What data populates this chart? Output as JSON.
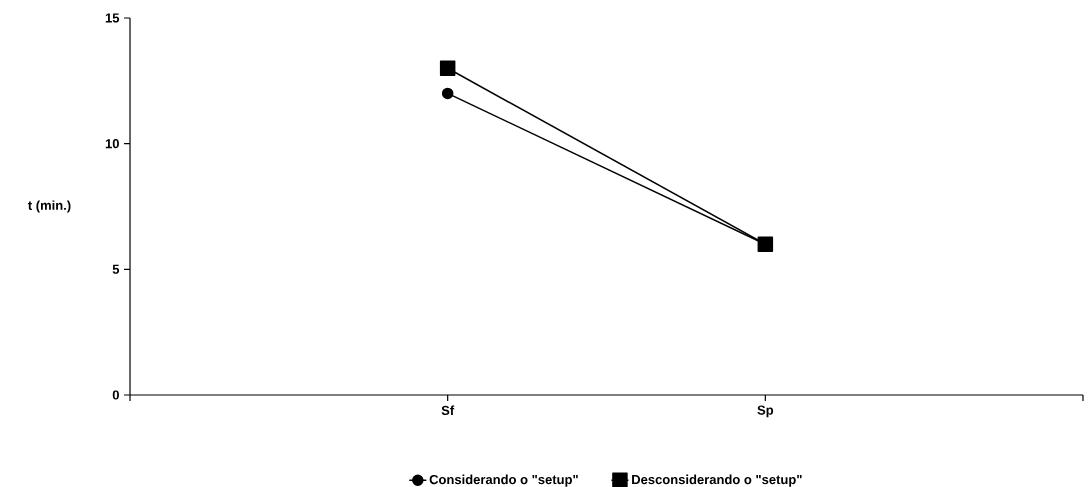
{
  "chart_data": {
    "type": "line",
    "categories": [
      "Sf",
      "Sp"
    ],
    "ylabel": "t (min.)",
    "ylim": [
      0,
      15
    ],
    "yticks": [
      0,
      5,
      10,
      15
    ],
    "grid": false,
    "legend": "bottom",
    "series": [
      {
        "name": "Considerando o \"setup\"",
        "color": "#000000",
        "marker": "circle",
        "values": [
          12,
          6
        ]
      },
      {
        "name": "Desconsiderando o \"setup\"",
        "color": "#000000",
        "marker": "square",
        "values": [
          13,
          6
        ]
      }
    ]
  }
}
